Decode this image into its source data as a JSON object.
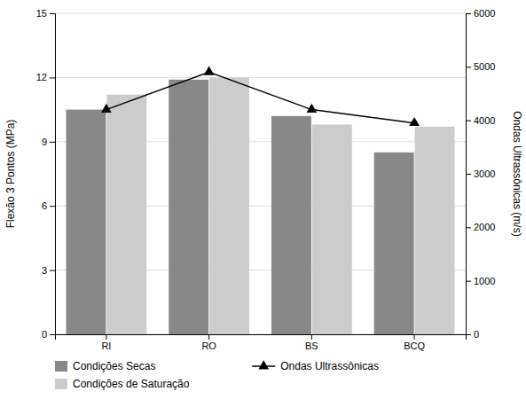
{
  "chart_data": {
    "type": "bar",
    "categories": [
      "RI",
      "RO",
      "BS",
      "BCQ"
    ],
    "ylabel": "Flexão 3 Pontos (MPa)",
    "y2label": "Ondas Ultrassônicas (m/s)",
    "series": [
      {
        "name": "Condições Secas",
        "color": "#888888",
        "values": [
          10.5,
          11.9,
          10.2,
          8.5
        ]
      },
      {
        "name": "Condições de Saturação",
        "color": "#cccccc",
        "values": [
          11.2,
          12.0,
          9.8,
          9.7
        ]
      },
      {
        "name": "Ondas Ultrassônicas",
        "type": "line",
        "axis": "y2",
        "color": "#000000",
        "marker": "triangle",
        "line_style": "solid",
        "values": [
          4200,
          4900,
          4200,
          3950
        ]
      }
    ],
    "ylim": [
      0,
      15
    ],
    "yticks": [
      0,
      3,
      6,
      9,
      12,
      15
    ],
    "y2lim": [
      0,
      6000
    ],
    "y2ticks": [
      0,
      1000,
      2000,
      3000,
      4000,
      5000,
      6000
    ],
    "grid": true,
    "legend": "bottom"
  }
}
